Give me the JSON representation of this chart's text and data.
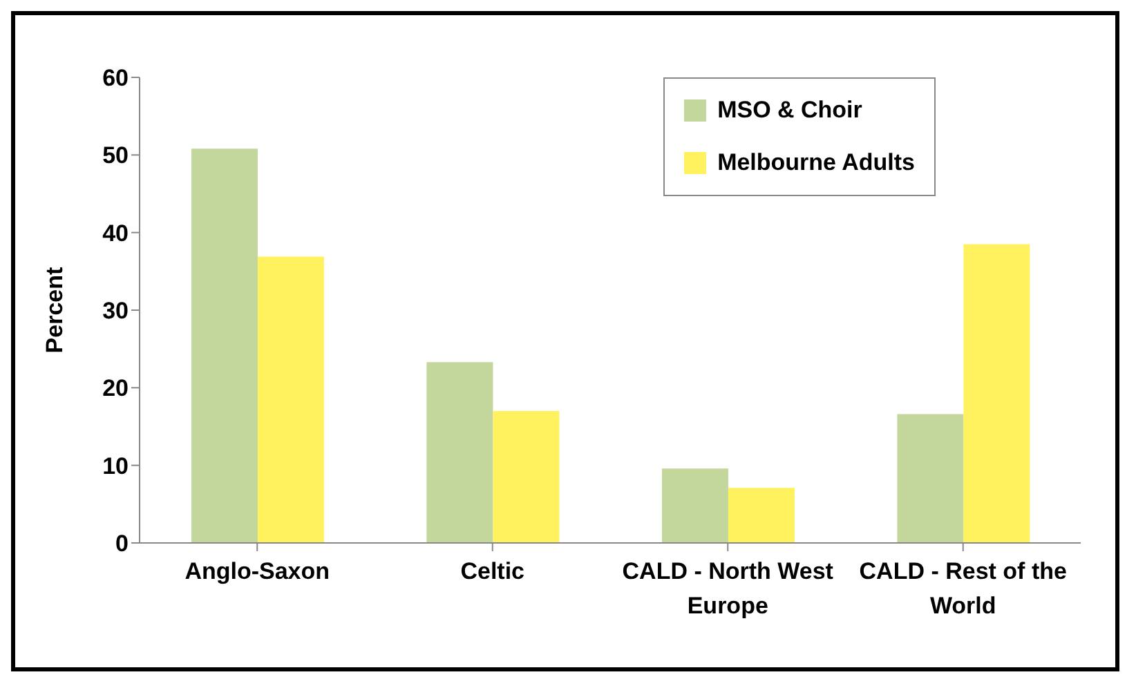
{
  "chart_data": {
    "type": "bar",
    "ylabel": "Percent",
    "categories": [
      "Anglo-Saxon",
      "Celtic",
      "CALD - North West Europe",
      "CALD - Rest of the World"
    ],
    "series": [
      {
        "name": "MSO & Choir",
        "color": "#c3d69b",
        "values": [
          50.8,
          23.3,
          9.6,
          16.6
        ]
      },
      {
        "name": "Melbourne Adults",
        "color": "#fff25e",
        "values": [
          36.9,
          17,
          7.1,
          38.5
        ]
      }
    ],
    "ylim": [
      0,
      60
    ],
    "yticks": [
      0,
      10,
      20,
      30,
      40,
      50,
      60
    ],
    "grid": false,
    "legend": "top right"
  }
}
